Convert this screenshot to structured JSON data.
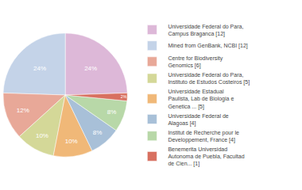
{
  "chart_data": {
    "type": "pie",
    "categories": [
      "Universidade Federal do Para,\nCampus Braganca [12]",
      "Mined from GenBank, NCBI [12]",
      "Centre for Biodiversity\nGenomics [6]",
      "Universidade Federal do Para,\nInstituto de Estudos Costeiros [5]",
      "Universidade Estadual\nPaulista, Lab de Biologia e\nGenetica ... [5]",
      "Universidade Federal de\nAlagoas [4]",
      "Institut de Recherche pour le\nDeveloppement, France [4]",
      "Benemerita Universidad\nAutonoma de Puebla, Facultad\nde Cien... [1]"
    ],
    "values": [
      24,
      24,
      12,
      10,
      10,
      8,
      8,
      2
    ],
    "value_labels": [
      "24%",
      "24%",
      "12%",
      "10%",
      "10%",
      "8%",
      "8%",
      "2%"
    ],
    "colors": [
      "#ddb8d8",
      "#c4d3e8",
      "#e8a898",
      "#d4d898",
      "#f0b878",
      "#a8c0d8",
      "#b8d8a8",
      "#d87060"
    ],
    "data_labels": true,
    "legend": "right"
  }
}
